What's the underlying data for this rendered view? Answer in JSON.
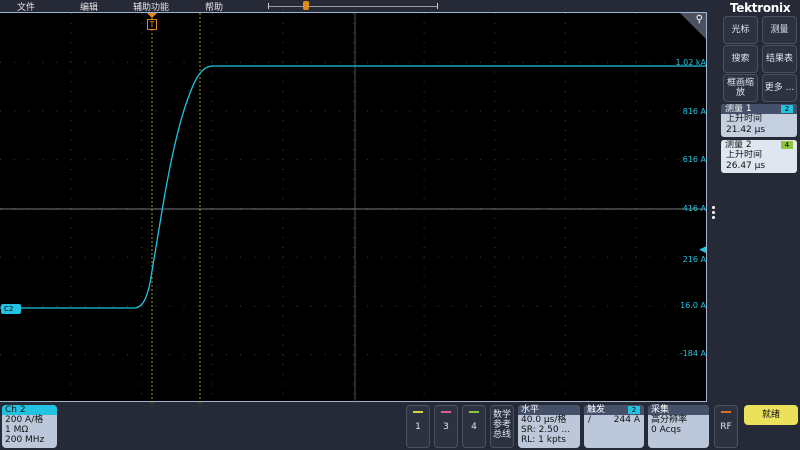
{
  "menu": [
    "文件",
    "编辑",
    "辅助功能",
    "帮助"
  ],
  "brand": "Tektronix",
  "side_buttons": [
    "光标",
    "测量",
    "搜索",
    "结果表",
    "框画缩放",
    "更多 ..."
  ],
  "measurements": [
    {
      "title": "测量 1",
      "source": "2",
      "type": "上升时间",
      "value": "21.42 μs",
      "badge_color": "#22c3e0"
    },
    {
      "title": "测量 2",
      "source": "4",
      "type": "上升时间",
      "value": "26.47 μs",
      "badge_color": "#8cc63f"
    }
  ],
  "y_labels": [
    "1.02 kA",
    "816 A",
    "616 A",
    "416 A",
    "216 A",
    "16.0 A",
    "-184 A"
  ],
  "channel_marker": "C2",
  "trigger_marker": "T",
  "channel": {
    "name": "Ch 2",
    "scale": "200 A/格",
    "impedance": "1 MΩ",
    "bandwidth": "200 MHz",
    "color": "#22c3e0"
  },
  "channel_buttons": [
    {
      "label": "1",
      "color": "#d6d63a"
    },
    {
      "label": "3",
      "color": "#e05a9a"
    },
    {
      "label": "4",
      "color": "#8cc63f"
    }
  ],
  "math_ref_bus": [
    "数学",
    "参考",
    "总线"
  ],
  "horizontal": {
    "title": "水平",
    "scale": "40.0 μs/格",
    "sr": "SR: 2.50 ...",
    "rl": "RL: 1 kpts"
  },
  "trigger": {
    "title": "触发",
    "source": "2",
    "level": "244 A"
  },
  "acquire": {
    "title": "采集",
    "mode": "高分辨率",
    "count": "0 Acqs"
  },
  "rf": "RF",
  "run_status": "就绪"
}
